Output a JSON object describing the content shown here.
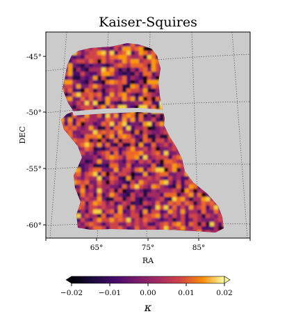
{
  "chart_data": {
    "type": "heatmap",
    "title": "Kaiser-Squires",
    "xlabel": "RA",
    "ylabel": "DEC",
    "x_ticks": [
      "65°",
      "75°",
      "85°"
    ],
    "y_ticks": [
      "-45°",
      "-50°",
      "-55°",
      "-60°"
    ],
    "projection": "gnomonic sky map with dotted graticule",
    "missing_data_color": "#cbcbcb",
    "colormap": "inferno",
    "colorbar": {
      "label": "κ",
      "orientation": "horizontal",
      "position": "bottom",
      "range": [
        -0.02,
        0.02
      ],
      "extend": "both",
      "ticks": [
        "−0.02",
        "−0.01",
        "0.00",
        "0.01",
        "0.02"
      ]
    },
    "grid": true
  }
}
